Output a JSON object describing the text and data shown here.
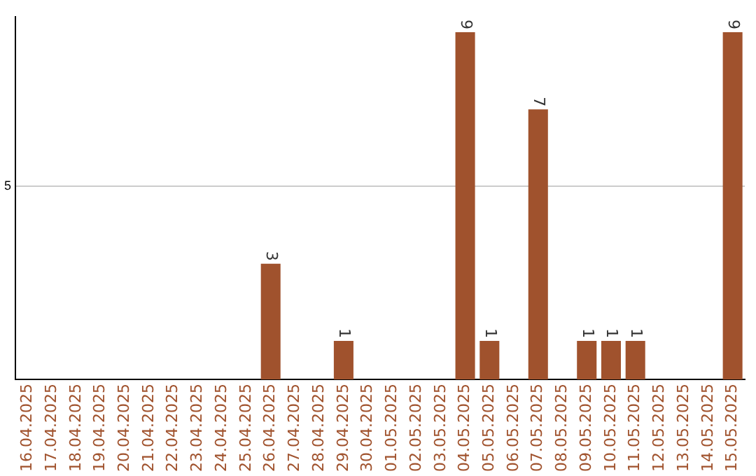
{
  "chart_data": {
    "type": "bar",
    "categories": [
      "16.04.2025",
      "17.04.2025",
      "18.04.2025",
      "19.04.2025",
      "20.04.2025",
      "21.04.2025",
      "22.04.2025",
      "23.04.2025",
      "24.04.2025",
      "25.04.2025",
      "26.04.2025",
      "27.04.2025",
      "28.04.2025",
      "29.04.2025",
      "30.04.2025",
      "01.05.2025",
      "02.05.2025",
      "03.05.2025",
      "04.05.2025",
      "05.05.2025",
      "06.05.2025",
      "07.05.2025",
      "08.05.2025",
      "09.05.2025",
      "10.05.2025",
      "11.05.2025",
      "12.05.2025",
      "13.05.2025",
      "14.05.2025",
      "15.05.2025"
    ],
    "values": [
      null,
      null,
      null,
      null,
      null,
      null,
      null,
      null,
      null,
      null,
      3,
      null,
      null,
      1,
      null,
      null,
      null,
      null,
      9,
      1,
      null,
      7,
      null,
      1,
      1,
      1,
      null,
      null,
      null,
      9
    ],
    "color": "#a0522d",
    "ylim": [
      0,
      9.4
    ],
    "yticks": [
      5
    ],
    "grid": "y",
    "data_labels": true
  }
}
